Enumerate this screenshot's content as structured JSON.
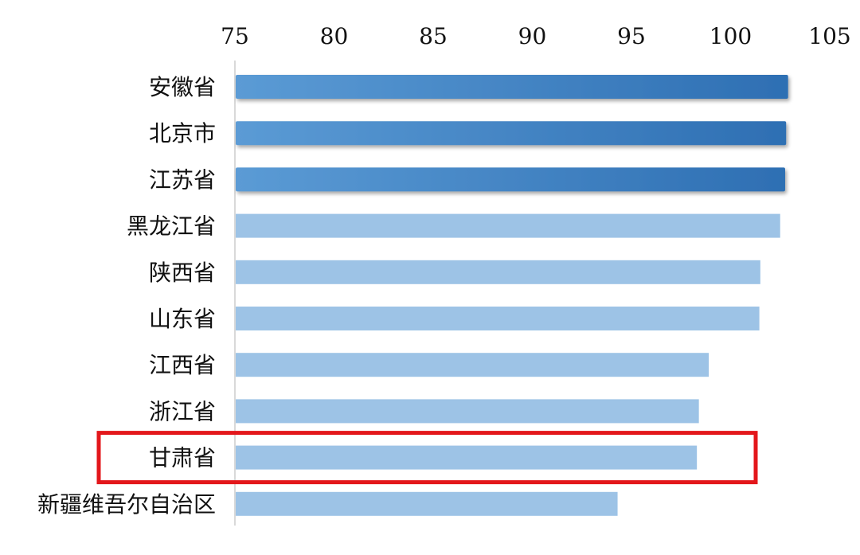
{
  "chart_data": {
    "type": "bar",
    "orientation": "horizontal",
    "title": "",
    "xlabel": "",
    "ylabel": "",
    "xlim": [
      75,
      105
    ],
    "x_ticks": [
      "75",
      "80",
      "85",
      "90",
      "95",
      "100",
      "105"
    ],
    "tick_values": [
      75,
      80,
      85,
      90,
      95,
      100,
      105
    ],
    "axis_position": "top",
    "grid": false,
    "categories": [
      "安徽省",
      "北京市",
      "江苏省",
      "黑龙江省",
      "陕西省",
      "山东省",
      "江西省",
      "浙江省",
      "甘肃省",
      "新疆维吾尔自治区"
    ],
    "values": [
      102.9,
      102.8,
      102.75,
      102.5,
      101.5,
      101.45,
      98.9,
      98.4,
      98.3,
      94.3
    ],
    "emphasized": [
      true,
      true,
      true,
      false,
      false,
      false,
      false,
      false,
      false,
      false
    ],
    "highlighted_category": "甘肃省",
    "colors": {
      "emphasis_start": "#5b9bd5",
      "emphasis_end": "#2e6fb3",
      "normal": "#9dc3e6",
      "highlight_box": "#e3171b",
      "axis_line": "#d9d9d9"
    }
  }
}
